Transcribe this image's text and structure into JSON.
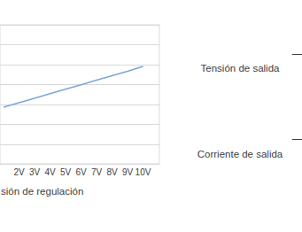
{
  "chart_data": {
    "type": "line",
    "x_label": "sión de regulación",
    "categories": [
      null,
      "2V",
      "3V",
      "4V",
      "5V",
      "6V",
      "7V",
      "8V",
      "9V",
      "10V"
    ],
    "values": [
      2.85,
      3.08,
      3.3,
      3.53,
      3.76,
      3.98,
      4.21,
      4.44,
      4.66,
      4.9
    ],
    "color": "#7ba7d8",
    "ylim": [
      0,
      7
    ],
    "yticks": [
      0,
      1,
      2,
      3,
      4,
      5,
      6,
      7
    ],
    "grid": true,
    "tick_labels": "x",
    "annotations": [
      "Tensión de salida",
      "Corriente de salida"
    ]
  }
}
